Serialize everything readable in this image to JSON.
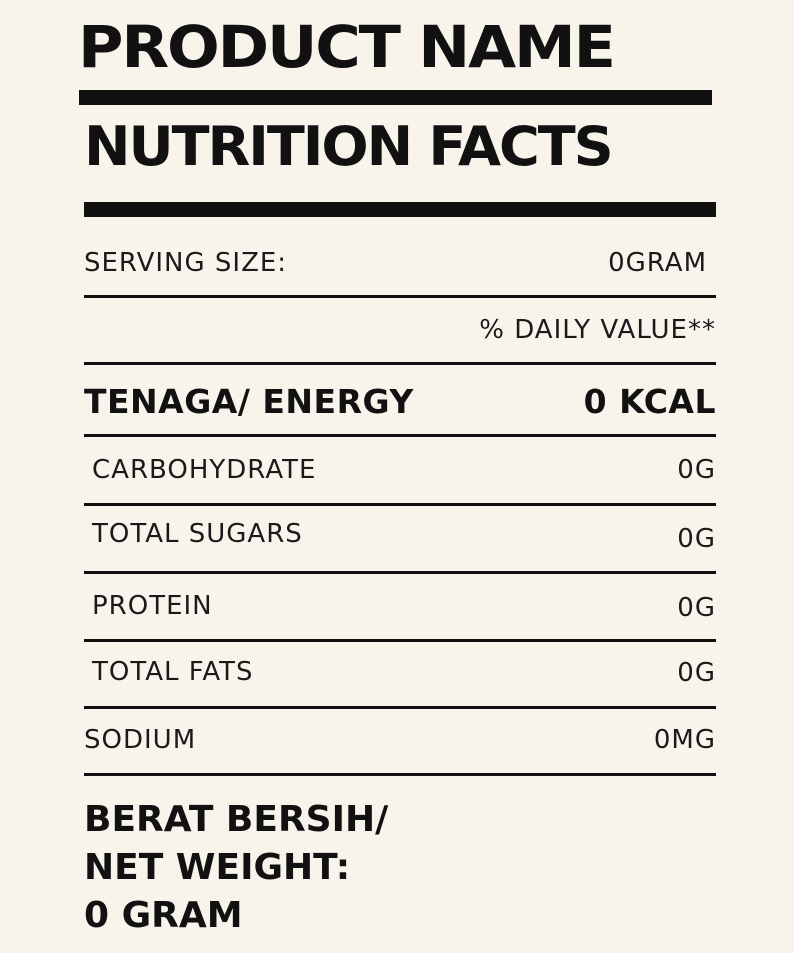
{
  "header": {
    "product_name": "PRODUCT NAME",
    "nutrition_facts": "NUTRITION FACTS"
  },
  "serving": {
    "label": "SERVING SIZE:",
    "value": "0GRAM"
  },
  "daily_value_label": "% DAILY VALUE**",
  "energy": {
    "label": "TENAGA/ ENERGY",
    "value": "0 KCAL"
  },
  "nutrients": [
    {
      "label": "CARBOHYDRATE",
      "value": "0G"
    },
    {
      "label": "TOTAL SUGARS",
      "value": "0G"
    },
    {
      "label": "PROTEIN",
      "value": "0G"
    },
    {
      "label": "TOTAL FATS",
      "value": "0G"
    },
    {
      "label": "SODIUM",
      "value": "0MG"
    }
  ],
  "net_weight": {
    "line1": "BERAT BERSIH/",
    "line2": "NET WEIGHT:",
    "line3": "0 GRAM"
  },
  "colors": {
    "background": "#f8f4ec",
    "ink": "#111111"
  }
}
